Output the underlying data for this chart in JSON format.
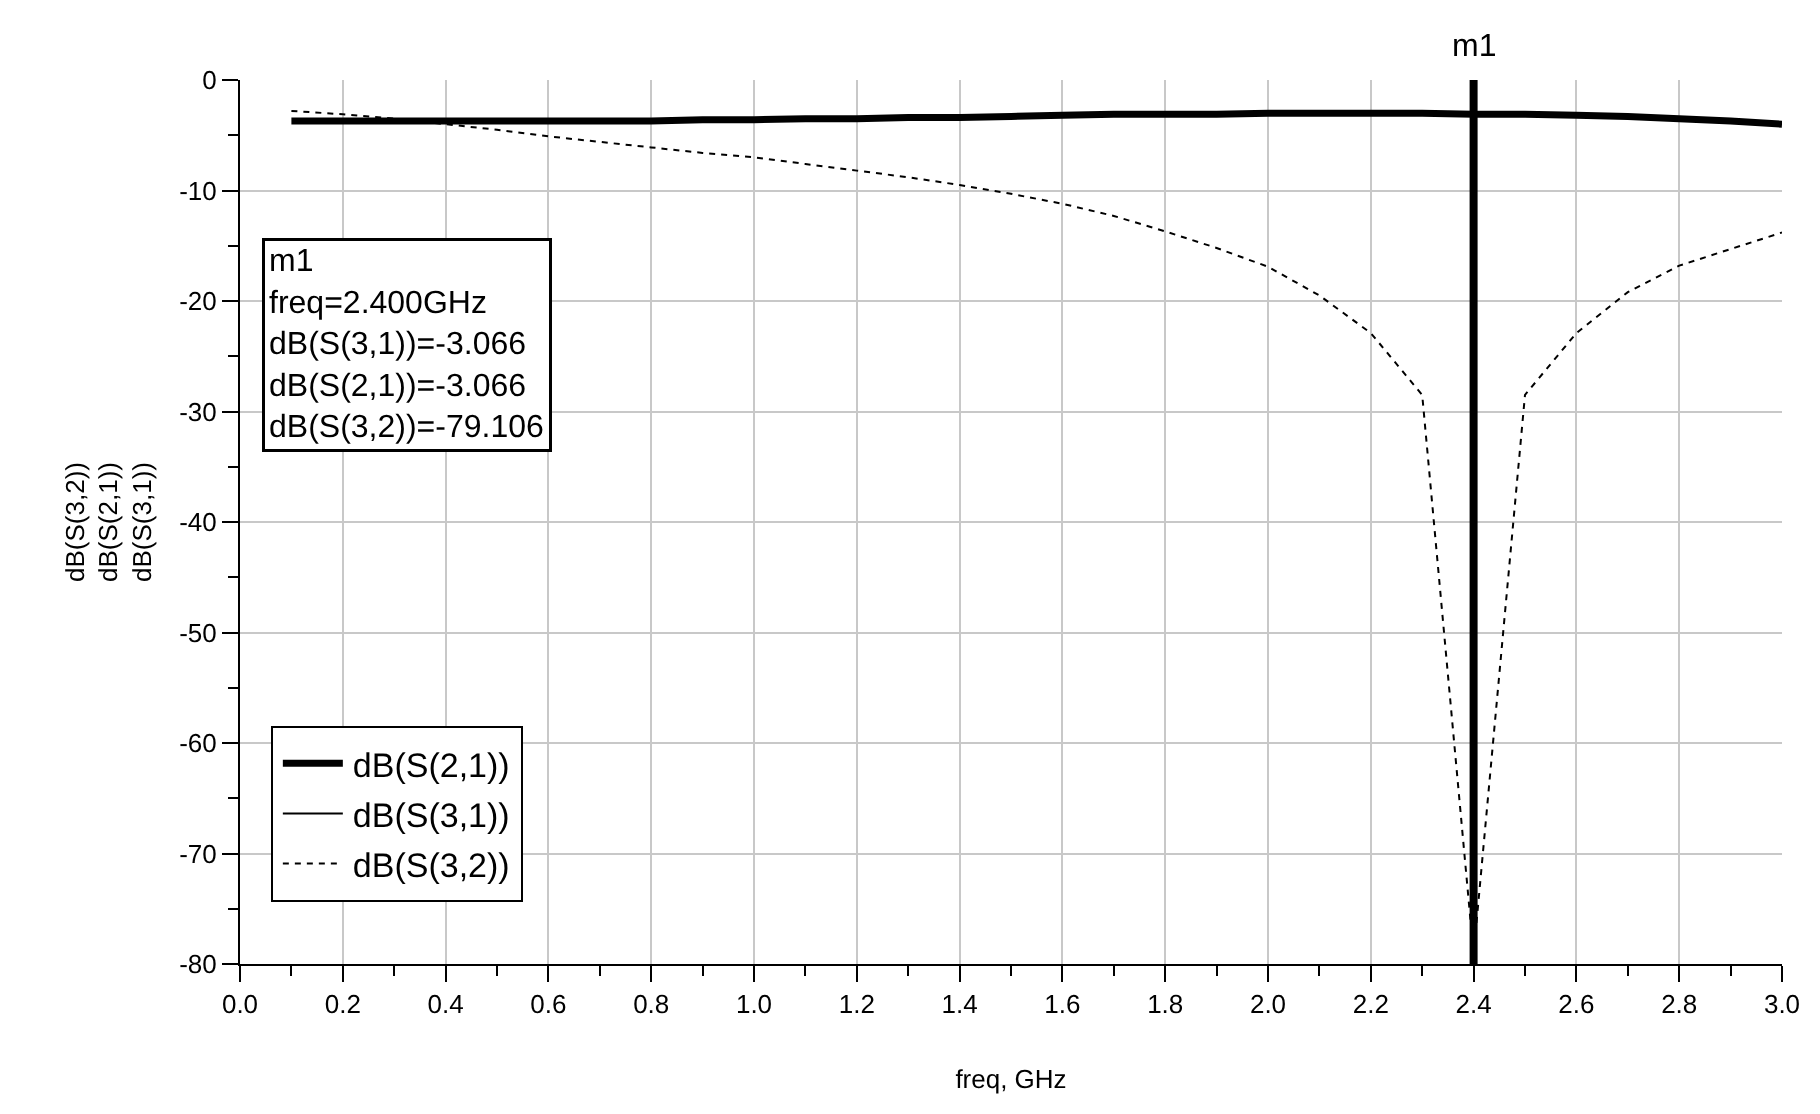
{
  "chart_data": {
    "type": "line",
    "xlabel": "freq, GHz",
    "ylabel": "dB(S(3,2))\ndB(S(2,1))\ndB(S(3,1))",
    "x": [
      0.1,
      0.2,
      0.3,
      0.4,
      0.5,
      0.6,
      0.7,
      0.8,
      0.9,
      1.0,
      1.1,
      1.2,
      1.3,
      1.4,
      1.5,
      1.6,
      1.7,
      1.8,
      1.9,
      2.0,
      2.1,
      2.2,
      2.3,
      2.4,
      2.5,
      2.6,
      2.7,
      2.8,
      2.9,
      3.0
    ],
    "series": [
      {
        "name": "dB(S(2,1))",
        "color": "#000000",
        "line_style": "solid",
        "values": [
          -3.7,
          -3.7,
          -3.7,
          -3.7,
          -3.7,
          -3.7,
          -3.7,
          -3.7,
          -3.6,
          -3.6,
          -3.5,
          -3.5,
          -3.4,
          -3.4,
          -3.3,
          -3.2,
          -3.1,
          -3.1,
          -3.1,
          -3.0,
          -3.0,
          -3.0,
          -3.0,
          -3.1,
          -3.1,
          -3.2,
          -3.3,
          -3.5,
          -3.7,
          -4.0
        ]
      },
      {
        "name": "dB(S(3,1))",
        "color": "#000000",
        "line_style": "solid",
        "values": [
          null,
          null,
          null,
          null,
          null,
          null,
          null,
          null,
          null,
          null,
          null,
          null,
          null,
          null,
          null,
          null,
          null,
          null,
          null,
          null,
          null,
          null,
          null,
          null,
          null,
          null,
          null,
          null,
          null,
          null
        ]
      },
      {
        "name": "dB(S(3,2))",
        "color": "#000000",
        "line_style": "dotted",
        "values": [
          -2.8,
          -3.1,
          -3.5,
          -4.0,
          -4.5,
          -5.1,
          -5.6,
          -6.1,
          -6.6,
          -7.0,
          -7.6,
          -8.2,
          -8.8,
          -9.5,
          -10.3,
          -11.2,
          -12.3,
          -13.7,
          -15.2,
          -16.9,
          -19.5,
          -22.9,
          -28.5,
          -79.1,
          -28.5,
          -22.9,
          -19.2,
          -16.8,
          -15.3,
          -13.8
        ]
      }
    ],
    "xlim": [
      0,
      3
    ],
    "xticks": [
      {
        "value": 0,
        "label": "0.0"
      },
      {
        "value": 0.1,
        "label": null
      },
      {
        "value": 0.2,
        "label": "0.2"
      },
      {
        "value": 0.3,
        "label": null
      },
      {
        "value": 0.4,
        "label": "0.4"
      },
      {
        "value": 0.5,
        "label": null
      },
      {
        "value": 0.6,
        "label": "0.6"
      },
      {
        "value": 0.7,
        "label": null
      },
      {
        "value": 0.8,
        "label": "0.8"
      },
      {
        "value": 0.9,
        "label": null
      },
      {
        "value": 1,
        "label": "1.0"
      },
      {
        "value": 1.1,
        "label": null
      },
      {
        "value": 1.2,
        "label": "1.2"
      },
      {
        "value": 1.3,
        "label": null
      },
      {
        "value": 1.4,
        "label": "1.4"
      },
      {
        "value": 1.5,
        "label": null
      },
      {
        "value": 1.6,
        "label": "1.6"
      },
      {
        "value": 1.7,
        "label": null
      },
      {
        "value": 1.8,
        "label": "1.8"
      },
      {
        "value": 1.9,
        "label": null
      },
      {
        "value": 2,
        "label": "2.0"
      },
      {
        "value": 2.1,
        "label": null
      },
      {
        "value": 2.2,
        "label": "2.2"
      },
      {
        "value": 2.3,
        "label": null
      },
      {
        "value": 2.4,
        "label": "2.4"
      },
      {
        "value": 2.5,
        "label": null
      },
      {
        "value": 2.6,
        "label": "2.6"
      },
      {
        "value": 2.7,
        "label": null
      },
      {
        "value": 2.8,
        "label": "2.8"
      },
      {
        "value": 2.9,
        "label": null
      },
      {
        "value": 3,
        "label": "3.0"
      }
    ],
    "ylim": [
      -80,
      0
    ],
    "yticks": [
      -80,
      {
        "value": -75,
        "label": null
      },
      -70,
      {
        "value": -65,
        "label": null
      },
      -60,
      {
        "value": -55,
        "label": null
      },
      -50,
      {
        "value": -45,
        "label": null
      },
      -40,
      {
        "value": -35,
        "label": null
      },
      -30,
      {
        "value": -25,
        "label": null
      },
      -20,
      {
        "value": -15,
        "label": null
      },
      -10,
      {
        "value": -5,
        "label": null
      },
      0
    ],
    "grid": true,
    "legend": "bottom left",
    "marker": "none",
    "ref_lines": [
      {
        "axis": "x",
        "value": 2.4,
        "label": "m1",
        "color": "#000000"
      }
    ],
    "annotations": [
      "m1\nfreq=2.400GHz\ndB(S(3,1))=-3.066\ndB(S(2,1))=-3.066\ndB(S(3,2))=-79.106"
    ]
  }
}
